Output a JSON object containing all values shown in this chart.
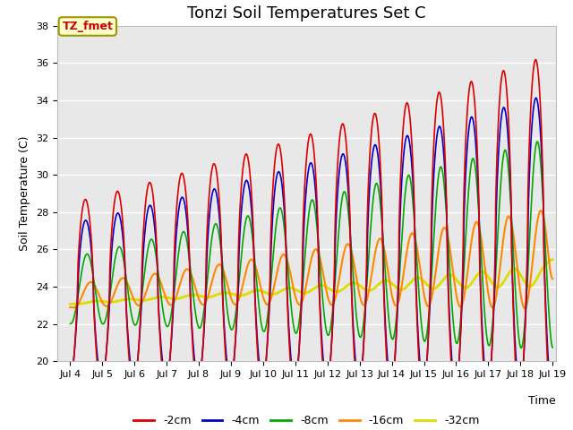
{
  "title": "Tonzi Soil Temperatures Set C",
  "xlabel": "Time",
  "ylabel": "Soil Temperature (C)",
  "ylim": [
    20,
    38
  ],
  "xlim_days": [
    3.6,
    19.1
  ],
  "annotation_text": "TZ_fmet",
  "annotation_color": "#cc0000",
  "annotation_bg": "#ffffcc",
  "annotation_border": "#999900",
  "series": {
    "-2cm": {
      "color": "#dd0000",
      "lw": 1.2
    },
    "-4cm": {
      "color": "#0000cc",
      "lw": 1.2
    },
    "-8cm": {
      "color": "#00aa00",
      "lw": 1.2
    },
    "-16cm": {
      "color": "#ff8800",
      "lw": 1.5
    },
    "-32cm": {
      "color": "#dddd00",
      "lw": 2.0
    }
  },
  "legend_labels": [
    "-2cm",
    "-4cm",
    "-8cm",
    "-16cm",
    "-32cm"
  ],
  "legend_colors": [
    "#dd0000",
    "#0000cc",
    "#00aa00",
    "#ff8800",
    "#dddd00"
  ],
  "tick_labels": [
    "Jul 4",
    "Jul 5",
    "Jul 6",
    "Jul 7",
    "Jul 8",
    "Jul 9",
    "Jul 10",
    "Jul 11",
    "Jul 12",
    "Jul 13",
    "Jul 14",
    "Jul 15",
    "Jul 16",
    "Jul 17",
    "Jul 18",
    "Jul 19"
  ],
  "tick_positions": [
    4,
    5,
    6,
    7,
    8,
    9,
    10,
    11,
    12,
    13,
    14,
    15,
    16,
    17,
    18,
    19
  ],
  "background_plot": "#e8e8e8",
  "background_fig": "#ffffff",
  "grid_color": "#ffffff",
  "title_fontsize": 13,
  "axis_label_fontsize": 9,
  "tick_fontsize": 8
}
